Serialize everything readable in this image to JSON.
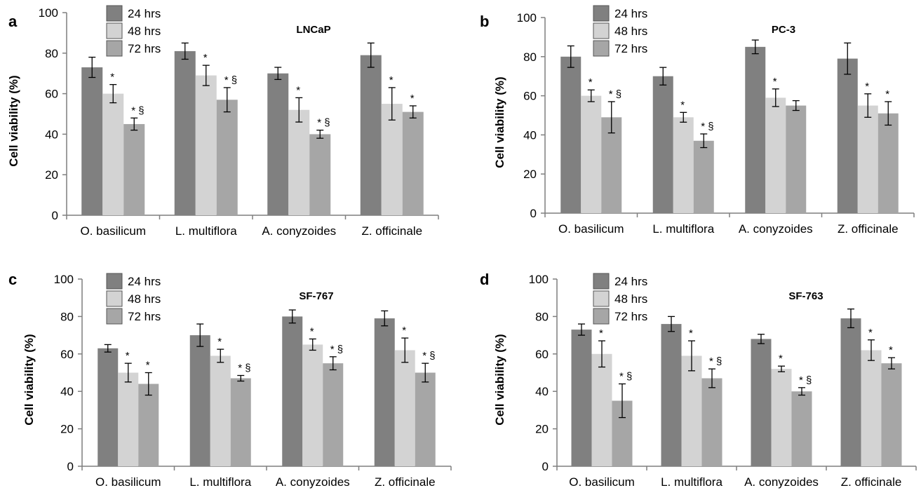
{
  "chart_data": [
    {
      "type": "bar",
      "panel_label": "a",
      "title": "LNCaP",
      "ylabel": "Cell viability (%)",
      "xlabel": "",
      "ylim": [
        0,
        100
      ],
      "yticks": [
        "0",
        "20",
        "40",
        "60",
        "80",
        "100"
      ],
      "categories": [
        "O. basilicum",
        "L. multiflora",
        "A. conyzoides",
        "Z. officinale"
      ],
      "legend_position": "top-left",
      "series": [
        {
          "name": "24 hrs",
          "color": "#808080",
          "values": [
            73,
            81,
            70,
            79
          ],
          "errors": [
            5,
            4,
            3,
            6
          ],
          "annotations": [
            "",
            "",
            "",
            ""
          ]
        },
        {
          "name": "48 hrs",
          "color": "#d3d3d3",
          "values": [
            60,
            69,
            52,
            55
          ],
          "errors": [
            4.5,
            5,
            6,
            8
          ],
          "annotations": [
            "*",
            "*",
            "*",
            "*"
          ]
        },
        {
          "name": "72 hrs",
          "color": "#a6a6a6",
          "values": [
            45,
            57,
            40,
            51
          ],
          "errors": [
            3,
            6,
            2,
            3
          ],
          "annotations": [
            "* §",
            "* §",
            "* §",
            "*"
          ]
        }
      ]
    },
    {
      "type": "bar",
      "panel_label": "b",
      "title": "PC-3",
      "ylabel": "Cell viability (%)",
      "xlabel": "",
      "ylim": [
        0,
        100
      ],
      "yticks": [
        "0",
        "20",
        "40",
        "60",
        "80",
        "100"
      ],
      "categories": [
        "O. basilicum",
        "L. multiflora",
        "A. conyzoides",
        "Z. officinale"
      ],
      "legend_position": "top-left",
      "series": [
        {
          "name": "24 hrs",
          "color": "#808080",
          "values": [
            80,
            70,
            85,
            79
          ],
          "errors": [
            5.5,
            4.5,
            3.5,
            8
          ],
          "annotations": [
            "",
            "",
            "",
            ""
          ]
        },
        {
          "name": "48 hrs",
          "color": "#d3d3d3",
          "values": [
            60,
            49,
            59,
            55
          ],
          "errors": [
            3,
            2.5,
            4.5,
            6
          ],
          "annotations": [
            "*",
            "*",
            "*",
            "*"
          ]
        },
        {
          "name": "72 hrs",
          "color": "#a6a6a6",
          "values": [
            49,
            37,
            55,
            51
          ],
          "errors": [
            8,
            3.5,
            2.5,
            6
          ],
          "annotations": [
            "* §",
            "* §",
            "",
            "*"
          ]
        }
      ]
    },
    {
      "type": "bar",
      "panel_label": "c",
      "title": "SF-767",
      "ylabel": "Cell viability (%)",
      "xlabel": "",
      "ylim": [
        0,
        100
      ],
      "yticks": [
        "0",
        "20",
        "40",
        "60",
        "80",
        "100"
      ],
      "categories": [
        "O. basilicum",
        "L. multiflora",
        "A. conyzoides",
        "Z. officinale"
      ],
      "legend_position": "top-left",
      "series": [
        {
          "name": "24 hrs",
          "color": "#808080",
          "values": [
            63,
            70,
            80,
            79
          ],
          "errors": [
            2,
            6,
            3.5,
            4
          ],
          "annotations": [
            "",
            "",
            "",
            ""
          ]
        },
        {
          "name": "48 hrs",
          "color": "#d3d3d3",
          "values": [
            50,
            59,
            65,
            62
          ],
          "errors": [
            5,
            3.5,
            3,
            6.5
          ],
          "annotations": [
            "*",
            "*",
            "*",
            "*"
          ]
        },
        {
          "name": "72 hrs",
          "color": "#a6a6a6",
          "values": [
            44,
            47,
            55,
            50
          ],
          "errors": [
            6,
            1.5,
            3.5,
            5
          ],
          "annotations": [
            "*",
            "* §",
            "* §",
            "* §"
          ]
        }
      ]
    },
    {
      "type": "bar",
      "panel_label": "d",
      "title": "SF-763",
      "ylabel": "Cell viability (%)",
      "xlabel": "",
      "ylim": [
        0,
        100
      ],
      "yticks": [
        "0",
        "20",
        "40",
        "60",
        "80",
        "100"
      ],
      "categories": [
        "O. basilicum",
        "L. multiflora",
        "A. conyzoides",
        "Z. officinale"
      ],
      "legend_position": "top-left",
      "series": [
        {
          "name": "24 hrs",
          "color": "#808080",
          "values": [
            73,
            76,
            68,
            79
          ],
          "errors": [
            3,
            4,
            2.5,
            5
          ],
          "annotations": [
            "",
            "",
            "",
            ""
          ]
        },
        {
          "name": "48 hrs",
          "color": "#d3d3d3",
          "values": [
            60,
            59,
            52,
            62
          ],
          "errors": [
            7,
            8,
            1.5,
            5.5
          ],
          "annotations": [
            "*",
            "*",
            "*",
            "*"
          ]
        },
        {
          "name": "72 hrs",
          "color": "#a6a6a6",
          "values": [
            35,
            47,
            40,
            55
          ],
          "errors": [
            9,
            5,
            2,
            3
          ],
          "annotations": [
            "* §",
            "* §",
            "* §",
            "*"
          ]
        }
      ]
    }
  ]
}
